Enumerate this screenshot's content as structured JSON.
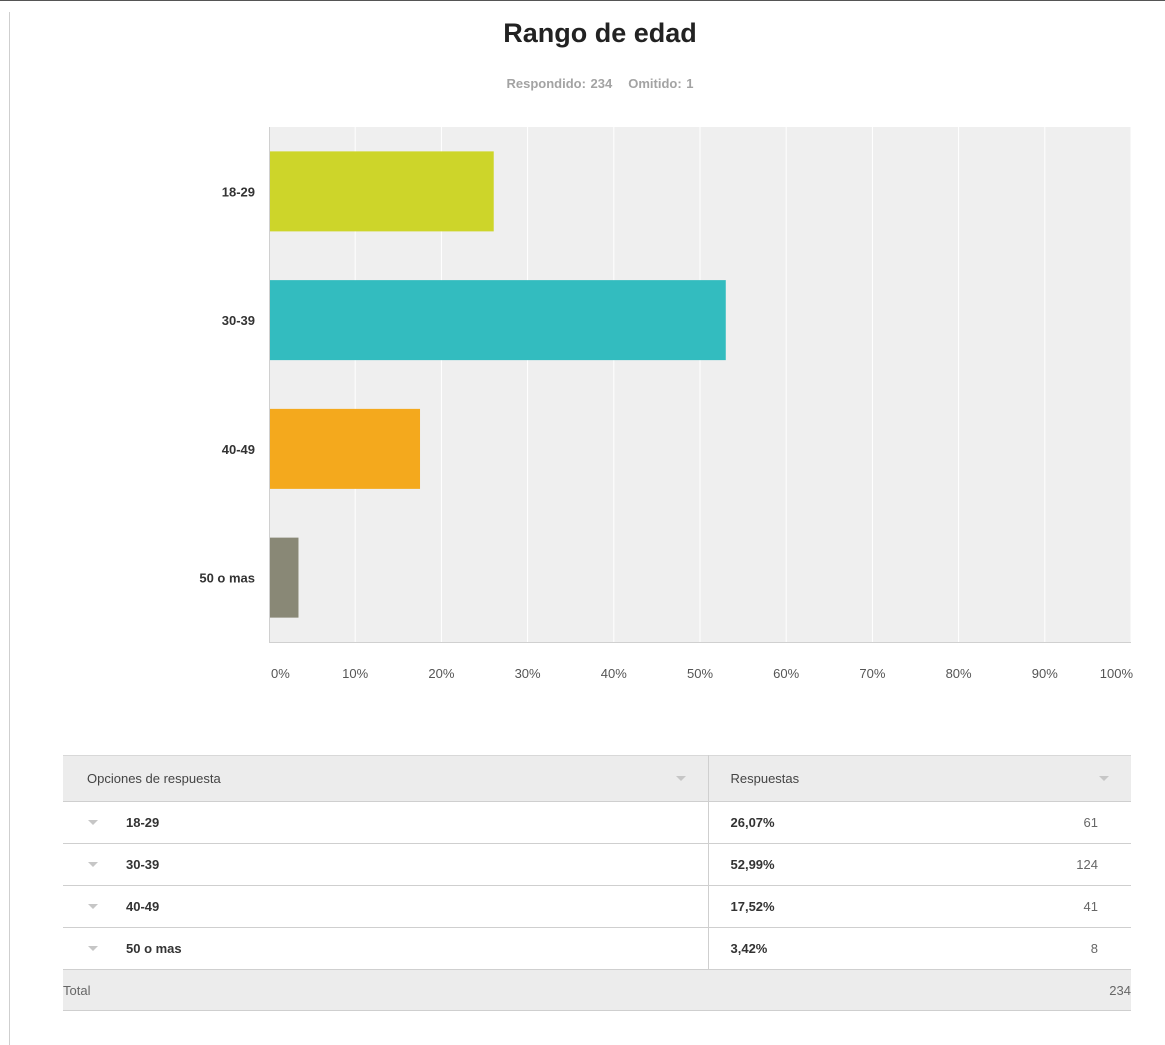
{
  "chart_data": {
    "type": "bar",
    "orientation": "horizontal",
    "title": "Rango de edad",
    "subtitle": {
      "answered": "Respondido: 234",
      "skipped": "Omitido: 1"
    },
    "categories": [
      "18-29",
      "30-39",
      "40-49",
      "50 o mas"
    ],
    "values": [
      26.07,
      52.99,
      17.52,
      3.42
    ],
    "unit": "%",
    "xlim": [
      0,
      100
    ],
    "xticks": [
      "0%",
      "10%",
      "20%",
      "30%",
      "40%",
      "50%",
      "60%",
      "70%",
      "80%",
      "90%",
      "100%"
    ],
    "colors": [
      "#cdd52a",
      "#33bcbf",
      "#f4a91d",
      "#898876"
    ],
    "grid": true,
    "legend": "none"
  },
  "table": {
    "headers": {
      "options": "Opciones de respuesta",
      "responses": "Respuestas"
    },
    "rows": [
      {
        "option": "18-29",
        "percent": "26,07%",
        "count": "61"
      },
      {
        "option": "30-39",
        "percent": "52,99%",
        "count": "124"
      },
      {
        "option": "40-49",
        "percent": "17,52%",
        "count": "41"
      },
      {
        "option": "50 o mas",
        "percent": "3,42%",
        "count": "8"
      }
    ],
    "total_label": "Total",
    "total_value": "234"
  }
}
